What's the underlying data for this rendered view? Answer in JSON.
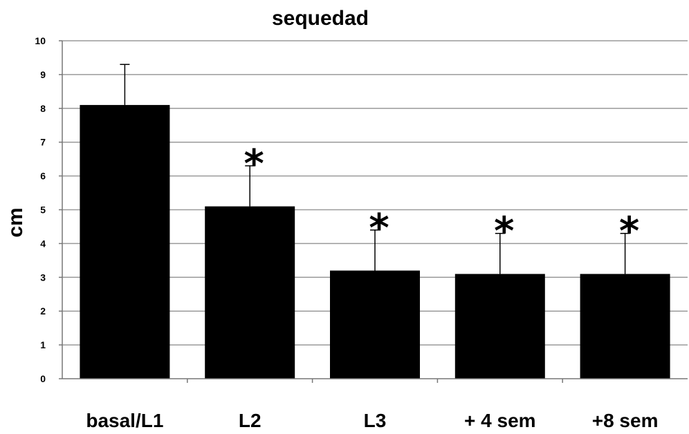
{
  "chart_data": {
    "type": "bar",
    "title": "sequedad",
    "xlabel": "",
    "ylabel": "cm",
    "ylim": [
      0,
      10
    ],
    "yticks": [
      0,
      1,
      2,
      3,
      4,
      5,
      6,
      7,
      8,
      9,
      10
    ],
    "grid": true,
    "categories": [
      "basal/L1",
      "L2",
      "L3",
      "+ 4 sem",
      "+8  sem"
    ],
    "values": [
      8.1,
      5.1,
      3.2,
      3.1,
      3.1
    ],
    "error_upper": [
      9.3,
      6.3,
      4.4,
      4.3,
      4.3
    ],
    "annotations": [
      "",
      "*",
      "*",
      "*",
      "*"
    ],
    "bar_color": "#000000",
    "grid_color": "#9a9a9a"
  }
}
